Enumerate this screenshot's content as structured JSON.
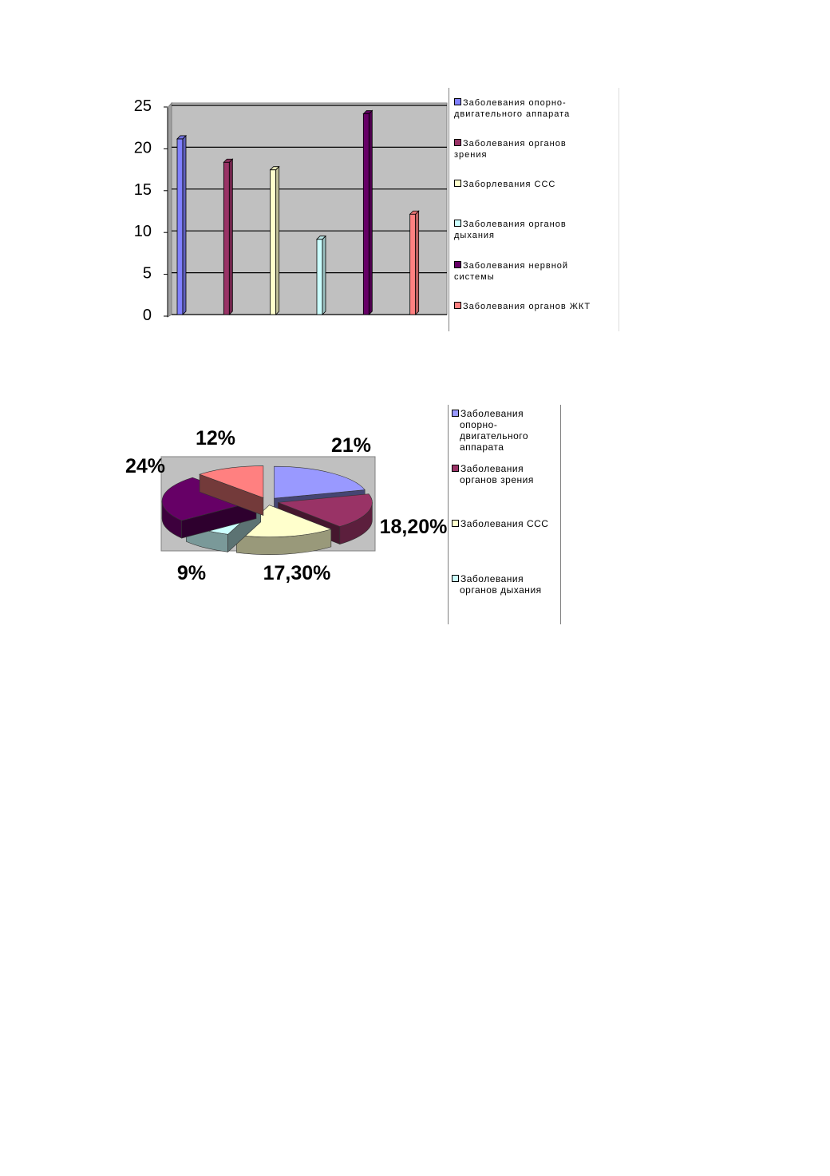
{
  "chart_data": [
    {
      "type": "bar",
      "series": [
        {
          "name": "Заболевания опорно-двигательного аппарата",
          "color": "#8080ff",
          "values": [
            21
          ]
        },
        {
          "name": "Заболевания органов зрения",
          "color": "#993366",
          "values": [
            18.2
          ]
        },
        {
          "name": "Заборлевания ССС",
          "color": "#ffffcc",
          "values": [
            17.3
          ]
        },
        {
          "name": "Заболевания органов дыхания",
          "color": "#ccffff",
          "values": [
            9
          ]
        },
        {
          "name": "Заболевания нервной системы",
          "color": "#660066",
          "values": [
            24
          ]
        },
        {
          "name": "Заболевания органов ЖКТ",
          "color": "#ff8080",
          "values": [
            12
          ]
        }
      ],
      "ylim": [
        0,
        25
      ],
      "yticks": [
        0,
        5,
        10,
        15,
        20,
        25
      ],
      "grid": true
    },
    {
      "type": "pie",
      "categories": [
        "Заболевания опорно-двигательного аппарата",
        "Заболевания органов зрения",
        "Заболевания ССС",
        "Заболевания органов дыхания",
        null,
        null
      ],
      "values": [
        21,
        18.2,
        17.3,
        9,
        24,
        12
      ],
      "value_labels": [
        "21%",
        "18,20%",
        "17,30%",
        "9%",
        "24%",
        "12%"
      ],
      "colors": [
        "#9999ff",
        "#993366",
        "#ffffcc",
        "#ccffff",
        "#660066",
        "#ff8080"
      ]
    }
  ]
}
